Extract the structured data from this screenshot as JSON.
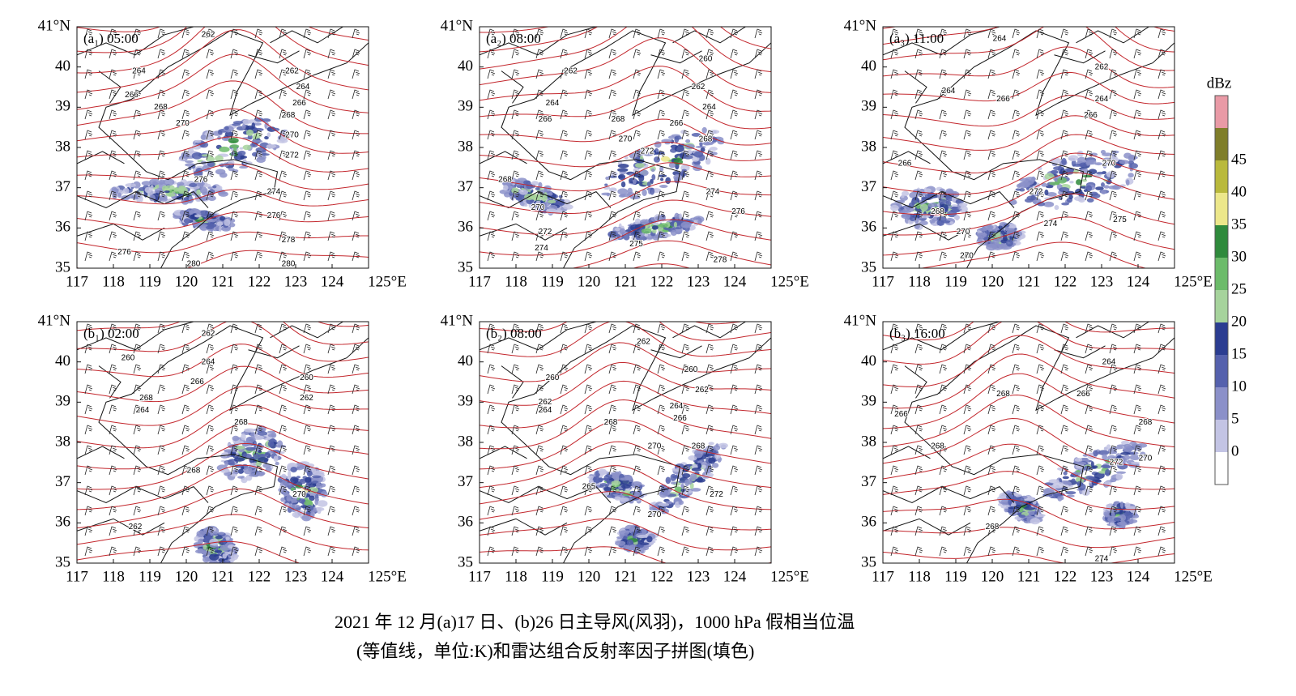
{
  "panels": [
    {
      "label": "(a₁) 05:00",
      "contour_labels": [
        {
          "value": 262,
          "lon": 120.6,
          "lat": 40.8
        },
        {
          "value": 264,
          "lon": 118.7,
          "lat": 39.9
        },
        {
          "value": 266,
          "lon": 118.5,
          "lat": 39.3
        },
        {
          "value": 268,
          "lon": 119.3,
          "lat": 39.0
        },
        {
          "value": 270,
          "lon": 119.9,
          "lat": 38.6
        },
        {
          "value": 262,
          "lon": 122.9,
          "lat": 39.9
        },
        {
          "value": 264,
          "lon": 123.2,
          "lat": 39.5
        },
        {
          "value": 266,
          "lon": 123.1,
          "lat": 39.1
        },
        {
          "value": 268,
          "lon": 122.8,
          "lat": 38.8
        },
        {
          "value": 270,
          "lon": 122.9,
          "lat": 38.3
        },
        {
          "value": 272,
          "lon": 122.9,
          "lat": 37.8
        },
        {
          "value": 274,
          "lon": 122.4,
          "lat": 36.9
        },
        {
          "value": 276,
          "lon": 120.4,
          "lat": 37.2
        },
        {
          "value": 276,
          "lon": 122.4,
          "lat": 36.3
        },
        {
          "value": 278,
          "lon": 122.8,
          "lat": 35.7
        },
        {
          "value": 276,
          "lon": 118.3,
          "lat": 35.4
        },
        {
          "value": 280,
          "lon": 120.2,
          "lat": 35.1
        },
        {
          "value": 280,
          "lon": 122.8,
          "lat": 35.1
        }
      ]
    },
    {
      "label": "(a₂) 08:00",
      "contour_labels": [
        {
          "value": 262,
          "lon": 119.5,
          "lat": 39.9
        },
        {
          "value": 260,
          "lon": 123.2,
          "lat": 40.2
        },
        {
          "value": 262,
          "lon": 123.0,
          "lat": 39.5
        },
        {
          "value": 264,
          "lon": 119.0,
          "lat": 39.1
        },
        {
          "value": 264,
          "lon": 123.3,
          "lat": 39.0
        },
        {
          "value": 266,
          "lon": 118.8,
          "lat": 38.7
        },
        {
          "value": 268,
          "lon": 120.8,
          "lat": 38.7
        },
        {
          "value": 266,
          "lon": 122.4,
          "lat": 38.6
        },
        {
          "value": 270,
          "lon": 121.0,
          "lat": 38.2
        },
        {
          "value": 272,
          "lon": 121.6,
          "lat": 37.9
        },
        {
          "value": 268,
          "lon": 123.2,
          "lat": 38.2
        },
        {
          "value": 268,
          "lon": 117.7,
          "lat": 37.2
        },
        {
          "value": 274,
          "lon": 123.4,
          "lat": 36.9
        },
        {
          "value": 270,
          "lon": 118.6,
          "lat": 36.5
        },
        {
          "value": 276,
          "lon": 124.1,
          "lat": 36.4
        },
        {
          "value": 272,
          "lon": 118.8,
          "lat": 35.9
        },
        {
          "value": 274,
          "lon": 118.7,
          "lat": 35.5
        },
        {
          "value": 275,
          "lon": 121.3,
          "lat": 35.6
        },
        {
          "value": 278,
          "lon": 123.6,
          "lat": 35.2
        }
      ]
    },
    {
      "label": "(a₃) 11:00",
      "contour_labels": [
        {
          "value": 264,
          "lon": 120.2,
          "lat": 40.7
        },
        {
          "value": 262,
          "lon": 123.0,
          "lat": 40.0
        },
        {
          "value": 264,
          "lon": 118.8,
          "lat": 39.4
        },
        {
          "value": 266,
          "lon": 120.3,
          "lat": 39.2
        },
        {
          "value": 264,
          "lon": 123.0,
          "lat": 39.2
        },
        {
          "value": 266,
          "lon": 122.7,
          "lat": 38.8
        },
        {
          "value": 266,
          "lon": 117.6,
          "lat": 37.6
        },
        {
          "value": 270,
          "lon": 123.2,
          "lat": 37.6
        },
        {
          "value": 272,
          "lon": 121.2,
          "lat": 36.9
        },
        {
          "value": 268,
          "lon": 118.5,
          "lat": 36.4
        },
        {
          "value": 270,
          "lon": 119.2,
          "lat": 35.9
        },
        {
          "value": 274,
          "lon": 121.6,
          "lat": 36.1
        },
        {
          "value": 275,
          "lon": 123.5,
          "lat": 36.2
        },
        {
          "value": 270,
          "lon": 119.3,
          "lat": 35.3
        }
      ]
    },
    {
      "label": "(b₁) 02:00",
      "contour_labels": [
        {
          "value": 262,
          "lon": 120.6,
          "lat": 40.7
        },
        {
          "value": 260,
          "lon": 118.4,
          "lat": 40.1
        },
        {
          "value": 264,
          "lon": 120.6,
          "lat": 40.0
        },
        {
          "value": 266,
          "lon": 120.3,
          "lat": 39.5
        },
        {
          "value": 260,
          "lon": 123.3,
          "lat": 39.6
        },
        {
          "value": 262,
          "lon": 123.3,
          "lat": 39.1
        },
        {
          "value": 268,
          "lon": 118.9,
          "lat": 39.1
        },
        {
          "value": 264,
          "lon": 118.8,
          "lat": 38.8
        },
        {
          "value": 268,
          "lon": 121.5,
          "lat": 38.5
        },
        {
          "value": 268,
          "lon": 120.2,
          "lat": 37.3
        },
        {
          "value": 270,
          "lon": 123.1,
          "lat": 36.7
        },
        {
          "value": 262,
          "lon": 118.6,
          "lat": 35.9
        }
      ]
    },
    {
      "label": "(b₂) 08:00",
      "contour_labels": [
        {
          "value": 262,
          "lon": 121.5,
          "lat": 40.5
        },
        {
          "value": 260,
          "lon": 122.8,
          "lat": 39.8
        },
        {
          "value": 260,
          "lon": 119.0,
          "lat": 39.6
        },
        {
          "value": 262,
          "lon": 123.1,
          "lat": 39.3
        },
        {
          "value": 262,
          "lon": 118.8,
          "lat": 39.0
        },
        {
          "value": 264,
          "lon": 122.4,
          "lat": 38.9
        },
        {
          "value": 264,
          "lon": 118.8,
          "lat": 38.8
        },
        {
          "value": 266,
          "lon": 122.5,
          "lat": 38.6
        },
        {
          "value": 268,
          "lon": 120.6,
          "lat": 38.5
        },
        {
          "value": 268,
          "lon": 123.0,
          "lat": 37.9
        },
        {
          "value": 270,
          "lon": 121.8,
          "lat": 37.9
        },
        {
          "value": 265,
          "lon": 120.0,
          "lat": 36.9
        },
        {
          "value": 272,
          "lon": 123.5,
          "lat": 36.7
        },
        {
          "value": 270,
          "lon": 121.8,
          "lat": 36.2
        }
      ]
    },
    {
      "label": "(b₃) 16:00",
      "contour_labels": [
        {
          "value": 264,
          "lon": 123.2,
          "lat": 40.0
        },
        {
          "value": 268,
          "lon": 120.3,
          "lat": 39.2
        },
        {
          "value": 266,
          "lon": 122.5,
          "lat": 39.2
        },
        {
          "value": 266,
          "lon": 117.5,
          "lat": 38.7
        },
        {
          "value": 268,
          "lon": 124.2,
          "lat": 38.5
        },
        {
          "value": 268,
          "lon": 118.5,
          "lat": 37.9
        },
        {
          "value": 270,
          "lon": 124.2,
          "lat": 37.6
        },
        {
          "value": 272,
          "lon": 123.4,
          "lat": 37.5
        },
        {
          "value": 268,
          "lon": 120.0,
          "lat": 35.9
        },
        {
          "value": 274,
          "lon": 123.0,
          "lat": 35.1
        }
      ]
    }
  ],
  "axes": {
    "xlim": [
      117,
      125
    ],
    "ylim": [
      35,
      41
    ],
    "xticks": [
      117,
      118,
      119,
      120,
      121,
      122,
      123,
      124,
      {
        "value": 125,
        "label": "125°E"
      }
    ],
    "yticks": [
      35,
      36,
      37,
      38,
      39,
      40,
      {
        "value": 41,
        "label": "41°N"
      }
    ]
  },
  "colorbar": {
    "unit": "dBz",
    "ticks": [
      0,
      5,
      10,
      15,
      20,
      25,
      30,
      35,
      40,
      45
    ],
    "colors": [
      "#ffffff",
      "#c3c4e4",
      "#8b90c9",
      "#5561ad",
      "#2b3d91",
      "#a6d39c",
      "#6cbb6a",
      "#2f8a3c",
      "#ece78a",
      "#b9b93c",
      "#7f7e2a",
      "#e99aa6"
    ]
  },
  "caption": [
    "2021 年 12 月(a)17 日、(b)26 日主导风(风羽)，1000 hPa 假相当位温",
    "(等值线，单位:K)和雷达组合反射率因子拼图(填色)"
  ]
}
